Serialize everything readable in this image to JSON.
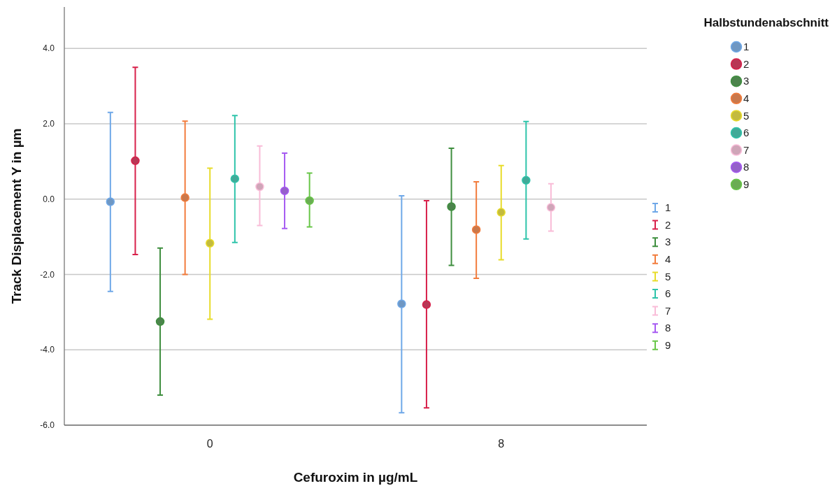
{
  "chart_data": {
    "type": "scatter",
    "xlabel": "Cefuroxim in µg/mL",
    "ylabel": "Track Displacement Y in µm",
    "legend_title": "Halbstundenabschnitt",
    "categories": [
      "0",
      "8"
    ],
    "ylim": [
      -6,
      5.1
    ],
    "yticks": [
      {
        "value": -6,
        "label": "-6.0"
      },
      {
        "value": -4,
        "label": "-4.0"
      },
      {
        "value": -2,
        "label": "-2.0"
      },
      {
        "value": 0,
        "label": "0.0"
      },
      {
        "value": 2,
        "label": "2.0"
      },
      {
        "value": 4,
        "label": "4.0"
      }
    ],
    "grid": "y",
    "legend": "right",
    "marker": "circle",
    "series": [
      {
        "name": "1",
        "color": "#6fa8e8",
        "values": [
          -0.07,
          -2.78
        ],
        "errors": [
          [
            -2.45,
            2.3
          ],
          [
            -5.67,
            0.09
          ]
        ]
      },
      {
        "name": "2",
        "color": "#d8204a",
        "values": [
          1.02,
          -2.8
        ],
        "errors": [
          [
            -1.47,
            3.5
          ],
          [
            -5.54,
            -0.04
          ]
        ]
      },
      {
        "name": "3",
        "color": "#3e8e3e",
        "values": [
          -3.25,
          -0.2
        ],
        "errors": [
          [
            -5.2,
            -1.3
          ],
          [
            -1.76,
            1.35
          ]
        ]
      },
      {
        "name": "4",
        "color": "#f27c3c",
        "values": [
          0.04,
          -0.81
        ],
        "errors": [
          [
            -2.0,
            2.07
          ],
          [
            -2.1,
            0.46
          ]
        ]
      },
      {
        "name": "5",
        "color": "#e8dc2a",
        "values": [
          -1.17,
          -0.35
        ],
        "errors": [
          [
            -3.19,
            0.82
          ],
          [
            -1.61,
            0.89
          ]
        ]
      },
      {
        "name": "6",
        "color": "#2ec4aa",
        "values": [
          0.54,
          0.5
        ],
        "errors": [
          [
            -1.15,
            2.22
          ],
          [
            -1.06,
            2.06
          ]
        ]
      },
      {
        "name": "7",
        "color": "#f9bcd8",
        "values": [
          0.33,
          -0.22
        ],
        "errors": [
          [
            -0.7,
            1.41
          ],
          [
            -0.85,
            0.41
          ]
        ]
      },
      {
        "name": "8",
        "color": "#a65af2",
        "values": [
          0.22,
          null
        ],
        "errors": [
          [
            -0.78,
            1.22
          ],
          null
        ]
      },
      {
        "name": "9",
        "color": "#68c648",
        "values": [
          -0.04,
          null
        ],
        "errors": [
          [
            -0.74,
            0.69
          ],
          null
        ]
      }
    ]
  }
}
